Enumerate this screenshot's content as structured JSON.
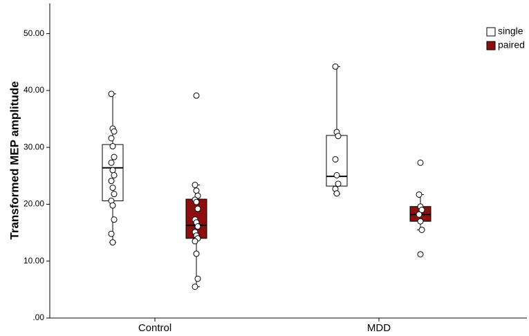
{
  "chart_data": {
    "type": "box",
    "ylabel": "Transformed MEP amplitude",
    "categories": [
      "Control",
      "MDD"
    ],
    "ylim": [
      0,
      55.3
    ],
    "yticks": [
      {
        "value": 0,
        "label": ".00"
      },
      {
        "value": 10,
        "label": "10.00"
      },
      {
        "value": 20,
        "label": "20.00"
      },
      {
        "value": 30,
        "label": "30.00"
      },
      {
        "value": 40,
        "label": "40.00"
      },
      {
        "value": 50,
        "label": "50.00"
      }
    ],
    "legend": "top-right",
    "series": [
      {
        "name": "single",
        "color": "#ffffff",
        "boxes": [
          {
            "min": 13.3,
            "q1": 20.6,
            "median": 26.4,
            "q3": 30.5,
            "max": 39.4,
            "outliers": [],
            "points": [
              39.4,
              33.3,
              32.8,
              31.6,
              30.2,
              28.3,
              27.3,
              26.0,
              25.1,
              24.1,
              22.9,
              21.8,
              20.6,
              19.8,
              17.3,
              14.8,
              13.3
            ]
          },
          {
            "min": 21.8,
            "q1": 23.2,
            "median": 24.9,
            "q3": 32.1,
            "max": 44.2,
            "outliers": [],
            "points": [
              44.2,
              32.7,
              32.0,
              27.9,
              25.1,
              23.6,
              22.7,
              21.9
            ]
          }
        ]
      },
      {
        "name": "paired",
        "color": "#8b0f0f",
        "boxes": [
          {
            "min": 5.5,
            "q1": 14.0,
            "median": 16.3,
            "q3": 20.9,
            "max": 23.4,
            "outliers": [
              39.1
            ],
            "points": [
              23.4,
              22.4,
              21.5,
              20.8,
              20.4,
              19.2,
              17.3,
              16.8,
              16.1,
              15.1,
              14.5,
              14.0,
              13.5,
              11.3,
              6.9,
              5.5
            ]
          },
          {
            "min": 15.5,
            "q1": 17.0,
            "median": 18.2,
            "q3": 19.6,
            "max": 21.7,
            "outliers": [
              27.3,
              11.2
            ],
            "points": [
              21.7,
              19.6,
              19.0,
              18.2,
              17.0,
              15.5
            ]
          }
        ]
      }
    ]
  }
}
